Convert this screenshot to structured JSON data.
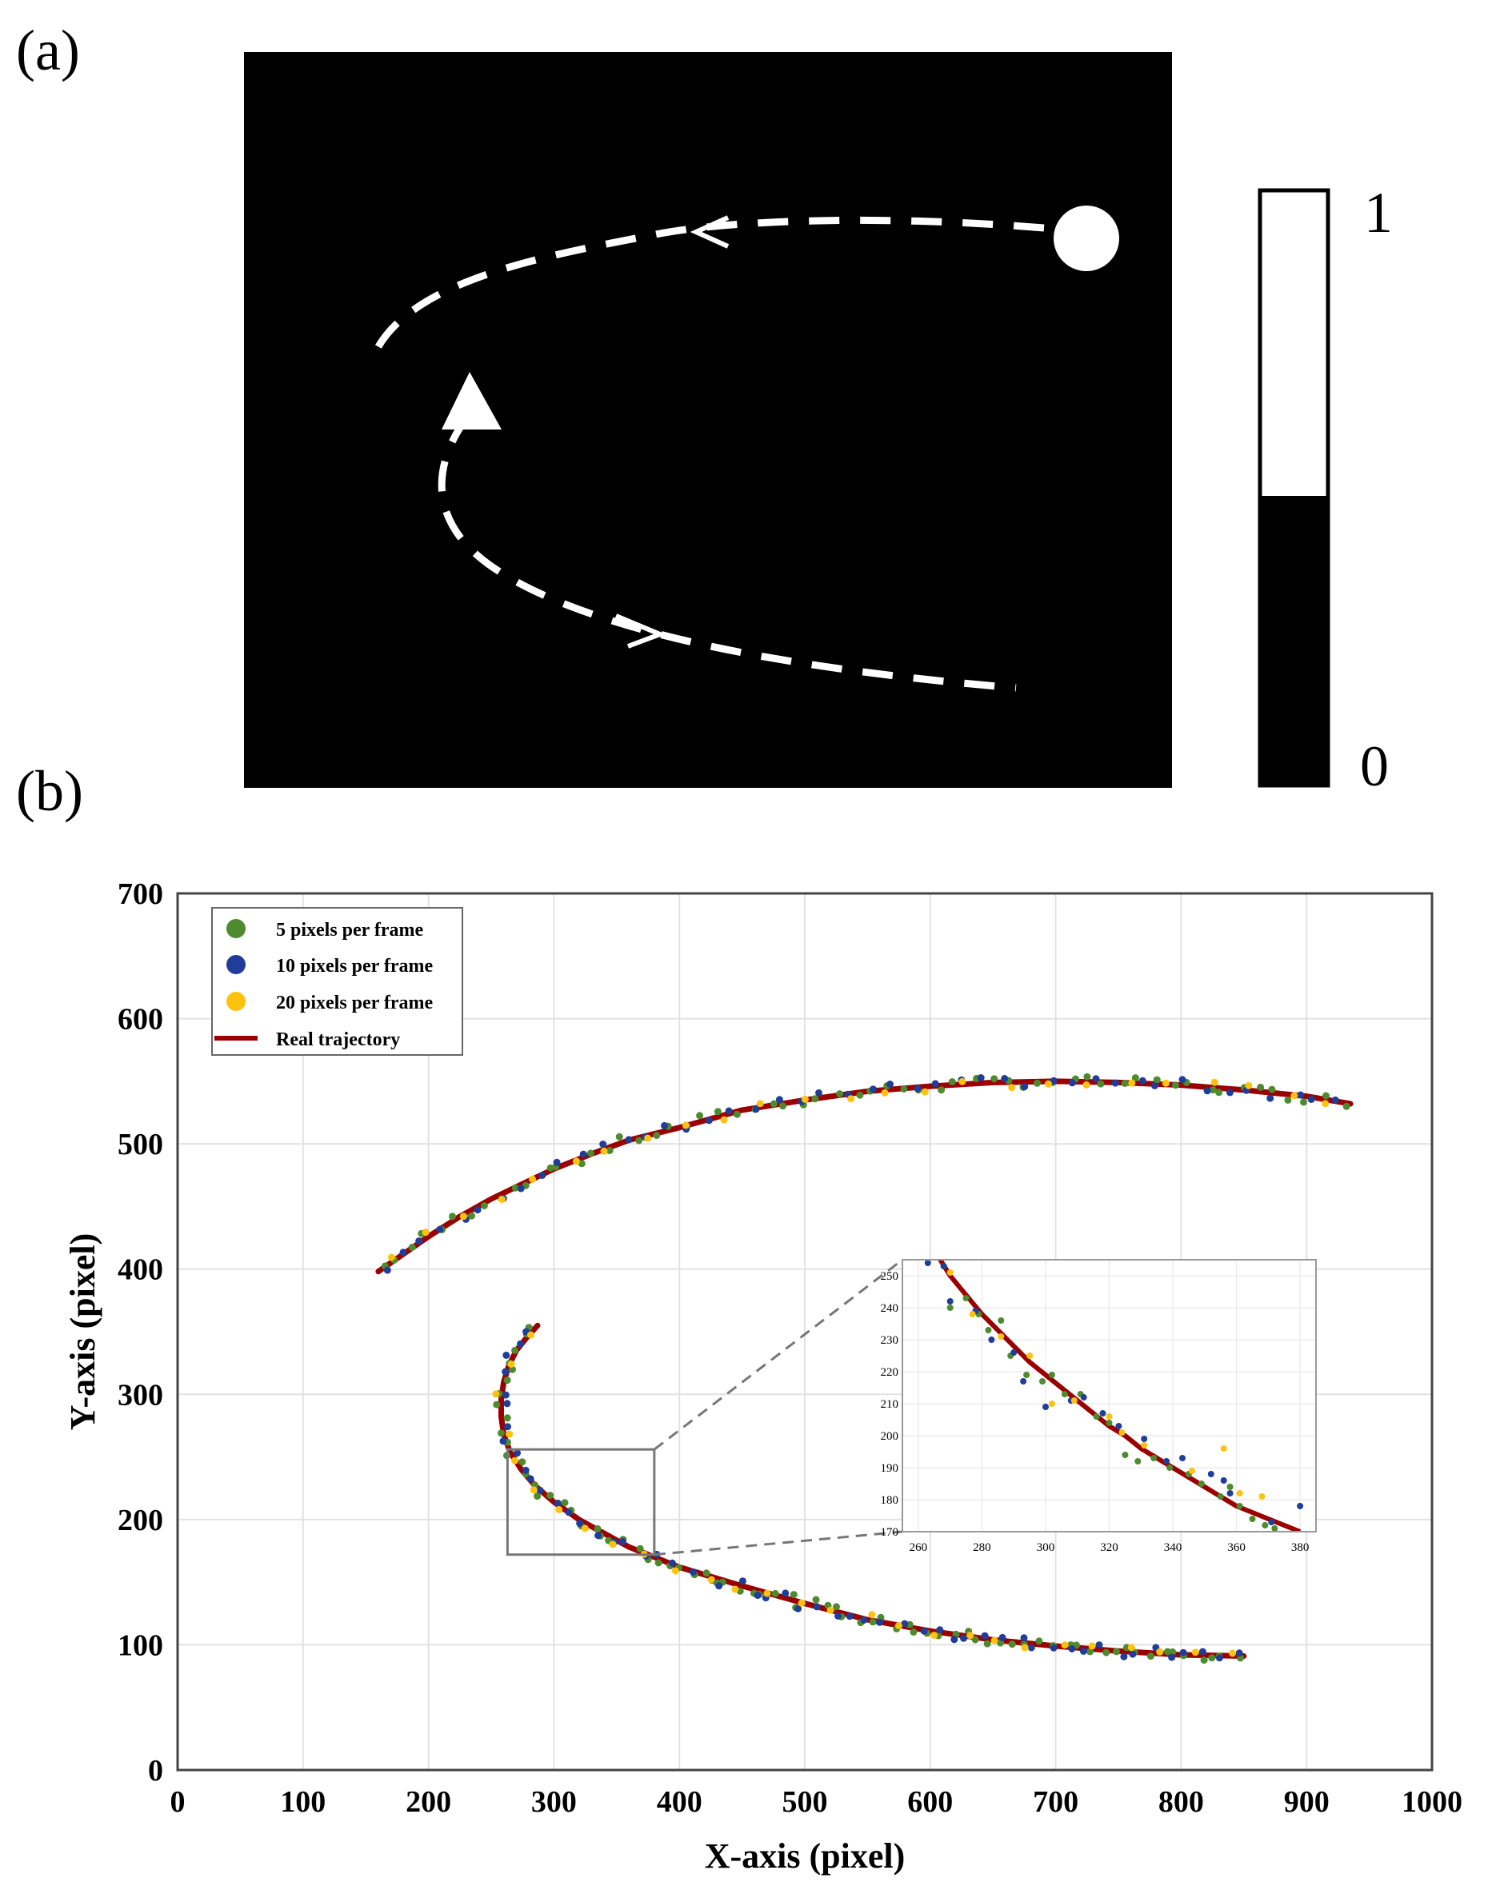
{
  "panel_a": {
    "label": "(a)",
    "colorbar": {
      "max_label": "1",
      "min_label": "0",
      "fill_fraction": 0.5
    }
  },
  "panel_b": {
    "label": "(b)"
  },
  "chart_data": {
    "type": "scatter",
    "xlabel": "X-axis (pixel)",
    "ylabel": "Y-axis (pixel)",
    "xlim": [
      0,
      1000
    ],
    "ylim": [
      0,
      700
    ],
    "xticks": [
      "0",
      "100",
      "200",
      "300",
      "400",
      "500",
      "600",
      "700",
      "800",
      "900",
      "1000"
    ],
    "yticks": [
      "0",
      "100",
      "200",
      "300",
      "400",
      "500",
      "600",
      "700"
    ],
    "grid": true,
    "legend_position": "top-left",
    "colors": {
      "green": "#4e8a2e",
      "blue": "#1f3d99",
      "yellow": "#ffc20e",
      "red": "#9b0000"
    },
    "series": [
      {
        "name": "5 pixels per frame",
        "marker": "dot",
        "color": "#4e8a2e"
      },
      {
        "name": "10 pixels per frame",
        "marker": "dot",
        "color": "#1f3d99"
      },
      {
        "name": "20 pixels per frame",
        "marker": "dot",
        "color": "#ffc20e"
      },
      {
        "name": "Real trajectory",
        "marker": "line",
        "color": "#9b0000"
      }
    ],
    "real_trajectory": {
      "upper": [
        [
          160,
          398
        ],
        [
          180,
          412
        ],
        [
          200,
          426
        ],
        [
          225,
          442
        ],
        [
          250,
          456
        ],
        [
          275,
          468
        ],
        [
          300,
          480
        ],
        [
          330,
          492
        ],
        [
          360,
          503
        ],
        [
          400,
          513
        ],
        [
          450,
          527
        ],
        [
          500,
          535
        ],
        [
          550,
          542
        ],
        [
          600,
          546
        ],
        [
          650,
          549
        ],
        [
          700,
          550
        ],
        [
          750,
          549
        ],
        [
          800,
          547
        ],
        [
          850,
          543
        ],
        [
          900,
          538
        ],
        [
          935,
          532
        ]
      ],
      "lower": [
        [
          287,
          355
        ],
        [
          278,
          345
        ],
        [
          270,
          335
        ],
        [
          264,
          323
        ],
        [
          260,
          310
        ],
        [
          258,
          296
        ],
        [
          258,
          282
        ],
        [
          260,
          268
        ],
        [
          265,
          254
        ],
        [
          274,
          240
        ],
        [
          285,
          227
        ],
        [
          300,
          214
        ],
        [
          320,
          200
        ],
        [
          340,
          189
        ],
        [
          360,
          178
        ],
        [
          380,
          170
        ],
        [
          400,
          162
        ],
        [
          450,
          147
        ],
        [
          500,
          133
        ],
        [
          550,
          120
        ],
        [
          600,
          111
        ],
        [
          650,
          104
        ],
        [
          700,
          99
        ],
        [
          750,
          95
        ],
        [
          800,
          92
        ],
        [
          850,
          91
        ]
      ]
    },
    "inset": {
      "source_region": {
        "x": [
          263,
          380
        ],
        "y": [
          172,
          256
        ]
      },
      "xlim": [
        255,
        385
      ],
      "ylim": [
        170,
        255
      ],
      "xticks": [
        "260",
        "280",
        "300",
        "320",
        "340",
        "360",
        "380"
      ],
      "yticks": [
        "170",
        "180",
        "190",
        "200",
        "210",
        "220",
        "230",
        "240",
        "250"
      ],
      "trajectory": [
        [
          265,
          258
        ],
        [
          270,
          250
        ],
        [
          275,
          244
        ],
        [
          280,
          238
        ],
        [
          285,
          233
        ],
        [
          290,
          228
        ],
        [
          295,
          223
        ],
        [
          300,
          219
        ],
        [
          305,
          215
        ],
        [
          310,
          211
        ],
        [
          315,
          207
        ],
        [
          320,
          203
        ],
        [
          325,
          200
        ],
        [
          330,
          196
        ],
        [
          335,
          193
        ],
        [
          340,
          190
        ],
        [
          345,
          187
        ],
        [
          350,
          184
        ],
        [
          355,
          181
        ],
        [
          360,
          178
        ],
        [
          365,
          176
        ],
        [
          370,
          174
        ],
        [
          375,
          172
        ],
        [
          380,
          170
        ]
      ],
      "points": {
        "green": [
          [
            268,
            253
          ],
          [
            270,
            240
          ],
          [
            275,
            243
          ],
          [
            279,
            238
          ],
          [
            282,
            233
          ],
          [
            286,
            236
          ],
          [
            289,
            225
          ],
          [
            294,
            219
          ],
          [
            299,
            217
          ],
          [
            302,
            219
          ],
          [
            306,
            213
          ],
          [
            311,
            213
          ],
          [
            316,
            206
          ],
          [
            320,
            204
          ],
          [
            325,
            194
          ],
          [
            329,
            192
          ],
          [
            334,
            193
          ],
          [
            339,
            190
          ],
          [
            345,
            188
          ],
          [
            349,
            185
          ],
          [
            355,
            181
          ],
          [
            358,
            184
          ],
          [
            361,
            178
          ],
          [
            365,
            174
          ],
          [
            369,
            172
          ],
          [
            372,
            171
          ]
        ],
        "blue": [
          [
            263,
            254
          ],
          [
            268,
            253
          ],
          [
            270,
            242
          ],
          [
            278,
            239
          ],
          [
            283,
            230
          ],
          [
            290,
            226
          ],
          [
            293,
            217
          ],
          [
            300,
            209
          ],
          [
            308,
            211
          ],
          [
            312,
            212
          ],
          [
            318,
            207
          ],
          [
            323,
            203
          ],
          [
            331,
            199
          ],
          [
            338,
            192
          ],
          [
            343,
            193
          ],
          [
            352,
            188
          ],
          [
            356,
            186
          ],
          [
            358,
            182
          ],
          [
            371,
            173
          ],
          [
            380,
            178
          ]
        ],
        "yellow": [
          [
            270,
            251
          ],
          [
            277,
            238
          ],
          [
            286,
            231
          ],
          [
            295,
            225
          ],
          [
            302,
            210
          ],
          [
            309,
            211
          ],
          [
            320,
            206
          ],
          [
            324,
            201
          ],
          [
            331,
            197
          ],
          [
            346,
            189
          ],
          [
            356,
            196
          ],
          [
            361,
            182
          ],
          [
            368,
            181
          ]
        ]
      }
    }
  }
}
